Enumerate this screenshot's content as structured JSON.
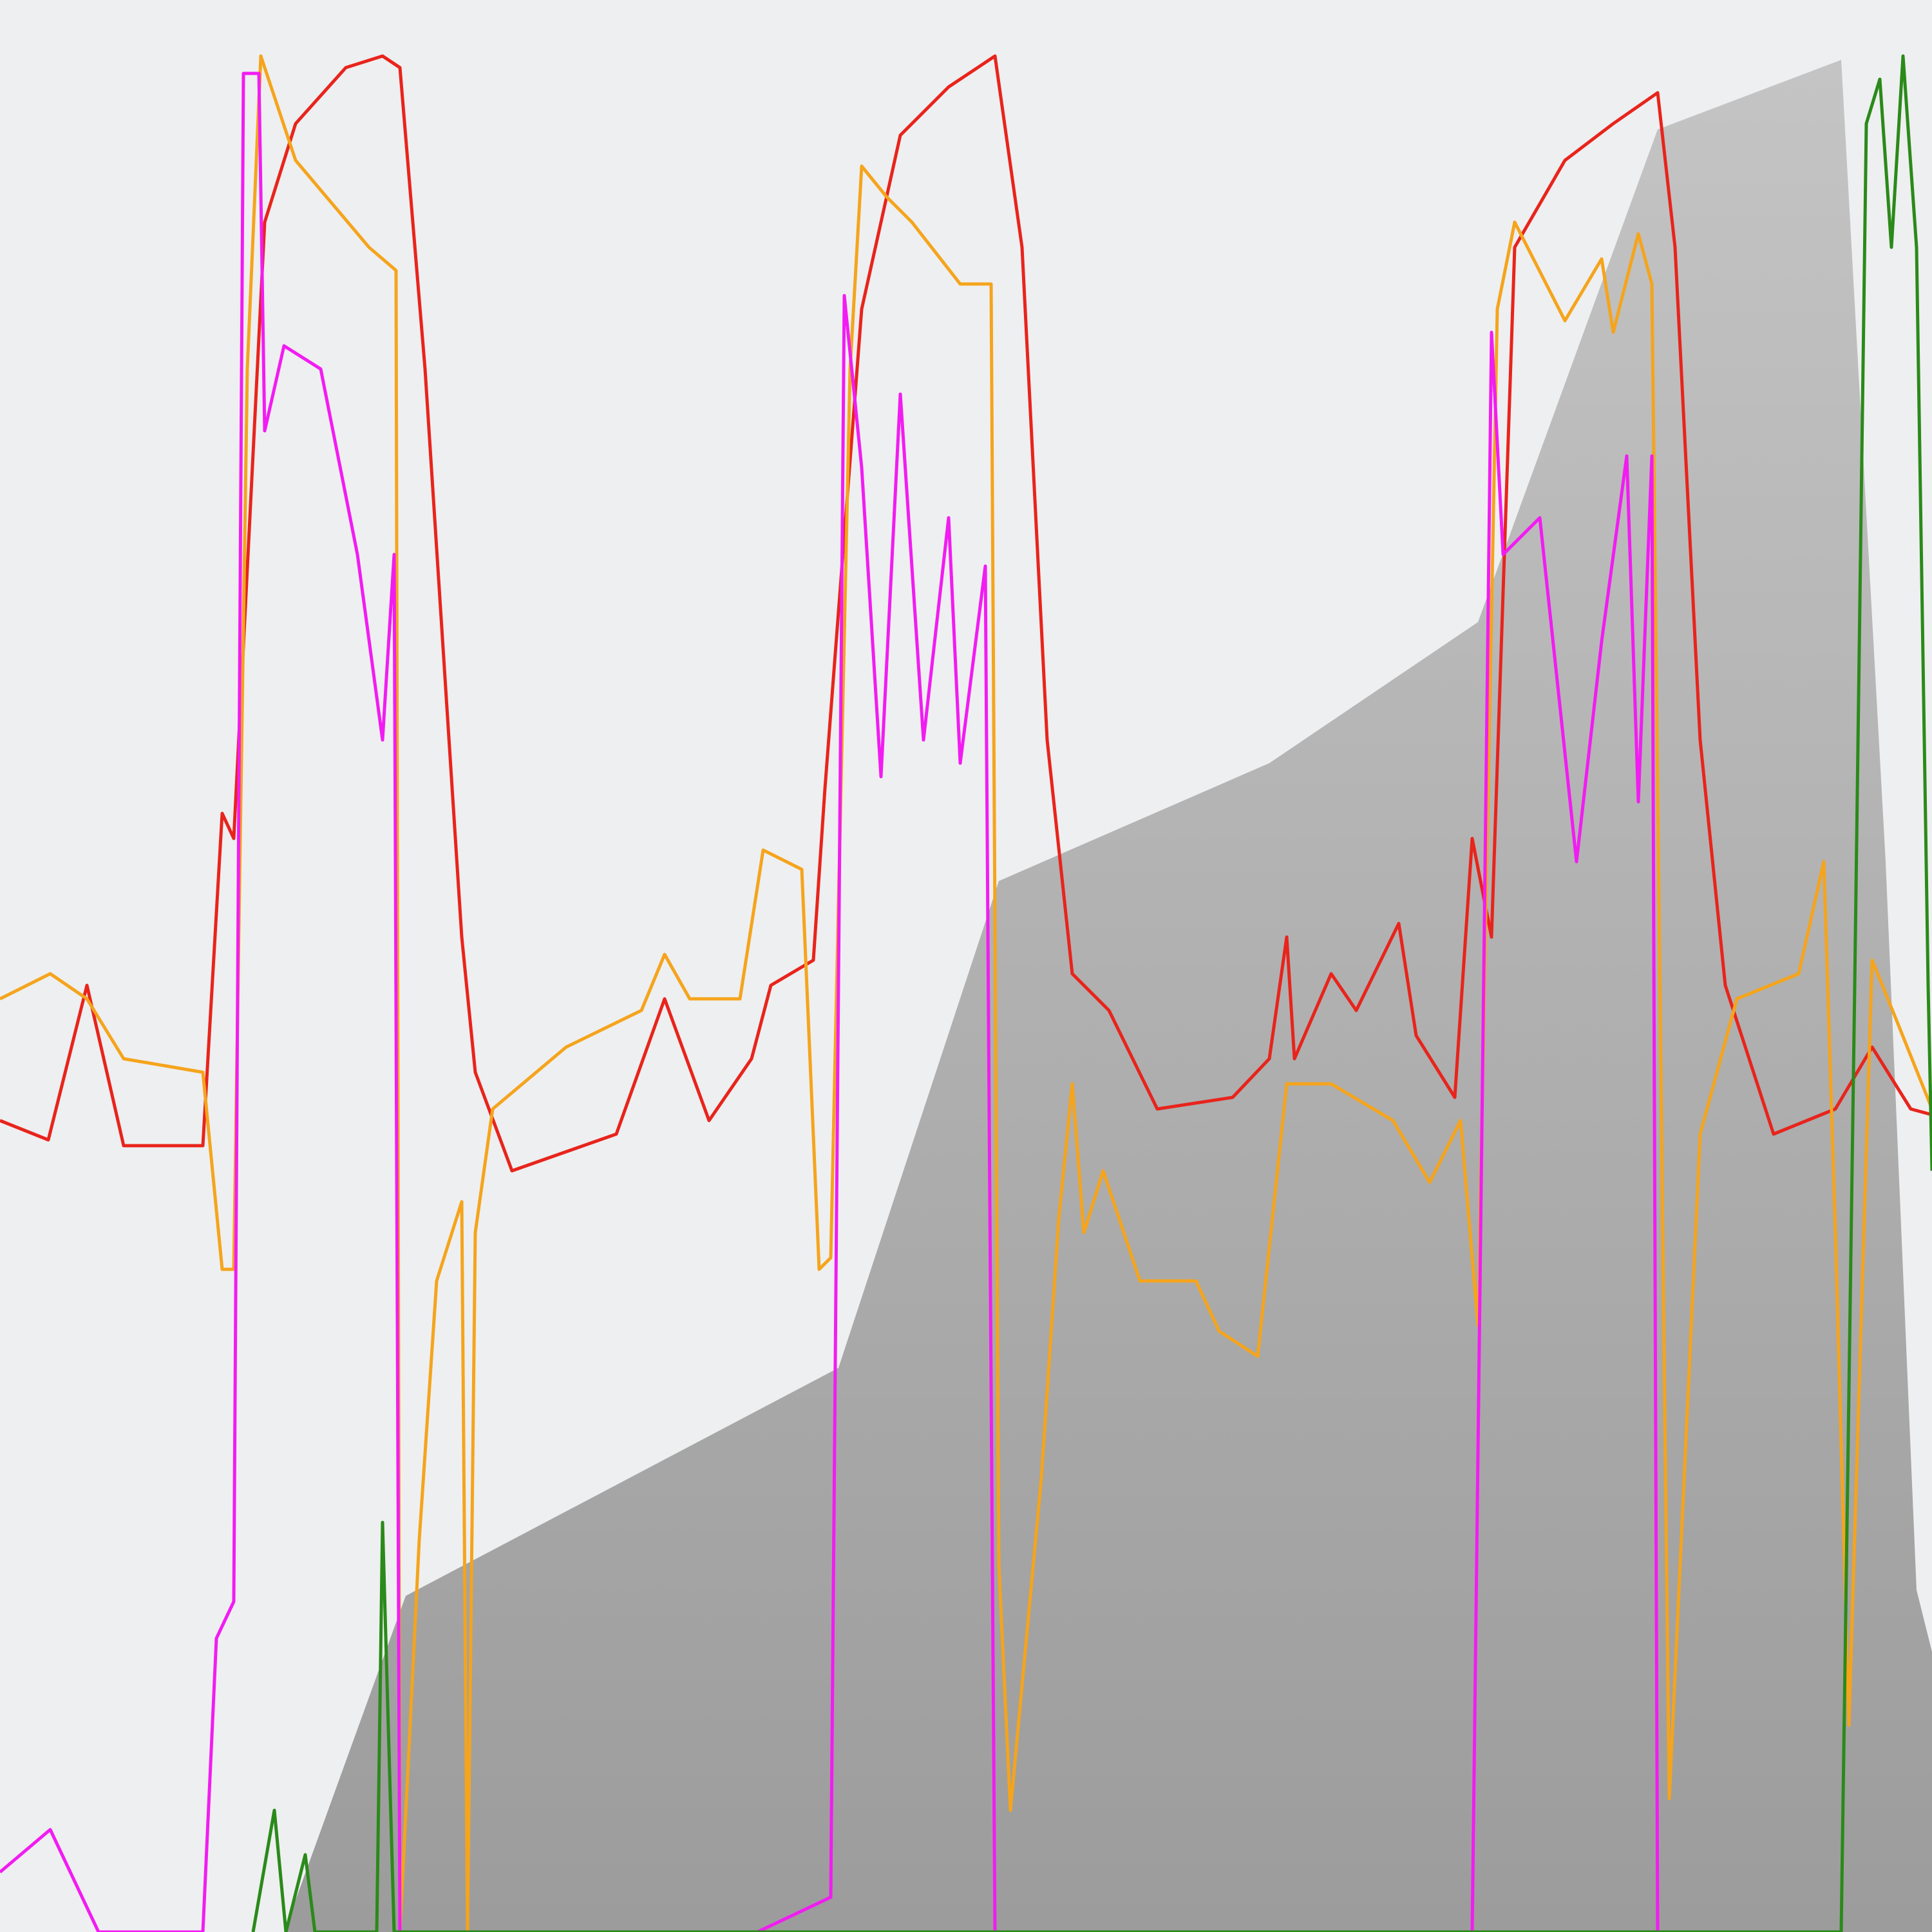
{
  "chart_data": {
    "type": "line",
    "title": "",
    "xlabel": "",
    "ylabel": "",
    "xlim": [
      0,
      100
    ],
    "ylim": [
      0,
      100
    ],
    "grid": false,
    "legend": "none",
    "background": "#eeeff0",
    "area": {
      "color_top": "#c4c4c4",
      "color_bottom": "#9c9c9c",
      "points": [
        [
          14.7,
          0
        ],
        [
          21,
          17.4
        ],
        [
          43.4,
          29.2
        ],
        [
          51.7,
          54.4
        ],
        [
          65.7,
          60.5
        ],
        [
          76.5,
          67.8
        ],
        [
          85.8,
          93.3
        ],
        [
          95.3,
          96.9
        ],
        [
          97.6,
          55.4
        ],
        [
          99.2,
          17.7
        ],
        [
          100,
          14.5
        ],
        [
          100,
          0
        ]
      ]
    },
    "series": [
      {
        "color": "#e8241c",
        "points": [
          [
            0,
            42
          ],
          [
            2.5,
            41
          ],
          [
            4.5,
            49
          ],
          [
            6.4,
            40.7
          ],
          [
            10.5,
            40.7
          ],
          [
            11.5,
            57.9
          ],
          [
            12.1,
            56.6
          ],
          [
            13.7,
            88.5
          ],
          [
            15.3,
            93.6
          ],
          [
            17.9,
            96.5
          ],
          [
            19.8,
            97.1
          ],
          [
            20.7,
            96.5
          ],
          [
            22,
            80.9
          ],
          [
            23.9,
            51.5
          ],
          [
            24.6,
            44.5
          ],
          [
            26.5,
            39.4
          ],
          [
            31.9,
            41.3
          ],
          [
            34.4,
            48.3
          ],
          [
            36.7,
            42
          ],
          [
            38.9,
            45.2
          ],
          [
            39.9,
            49
          ],
          [
            42.1,
            50.3
          ],
          [
            42.7,
            59.2
          ],
          [
            44.6,
            84
          ],
          [
            46.6,
            93
          ],
          [
            49.1,
            95.5
          ],
          [
            51.5,
            97.1
          ],
          [
            52.9,
            87.2
          ],
          [
            54.2,
            61.7
          ],
          [
            55.5,
            49.6
          ],
          [
            57.4,
            47.7
          ],
          [
            59.9,
            42.6
          ],
          [
            63.8,
            43.2
          ],
          [
            65.7,
            45.2
          ],
          [
            66.6,
            51.5
          ],
          [
            67,
            45.2
          ],
          [
            68.9,
            49.6
          ],
          [
            70.2,
            47.7
          ],
          [
            72.4,
            52.2
          ],
          [
            73.3,
            46.4
          ],
          [
            75.3,
            43.2
          ],
          [
            76.2,
            56.6
          ],
          [
            77.2,
            51.5
          ],
          [
            78.4,
            87.2
          ],
          [
            81,
            91.7
          ],
          [
            83.5,
            93.6
          ],
          [
            85.8,
            95.2
          ],
          [
            86.7,
            87.2
          ],
          [
            88,
            61.7
          ],
          [
            89.3,
            49
          ],
          [
            91.8,
            41.3
          ],
          [
            95,
            42.6
          ],
          [
            96.9,
            45.8
          ],
          [
            98.9,
            42.6
          ],
          [
            100,
            42.3
          ]
        ]
      },
      {
        "color": "#f5a41c",
        "points": [
          [
            0,
            48.3
          ],
          [
            2.6,
            49.6
          ],
          [
            4.5,
            48.3
          ],
          [
            6.4,
            45.2
          ],
          [
            10.5,
            44.5
          ],
          [
            11.5,
            34.3
          ],
          [
            12.1,
            34.3
          ],
          [
            12.8,
            80.9
          ],
          [
            13.5,
            97.1
          ],
          [
            15.3,
            91.7
          ],
          [
            19.1,
            87.2
          ],
          [
            20.5,
            86
          ],
          [
            20.7,
            0
          ],
          [
            21.7,
            20.3
          ],
          [
            22.6,
            33.7
          ],
          [
            23.9,
            37.8
          ],
          [
            24.2,
            0
          ],
          [
            24.6,
            36.2
          ],
          [
            25.5,
            42.6
          ],
          [
            29.3,
            45.8
          ],
          [
            33.2,
            47.7
          ],
          [
            34.4,
            50.6
          ],
          [
            35.7,
            48.3
          ],
          [
            38.3,
            48.3
          ],
          [
            39.5,
            56
          ],
          [
            41.5,
            55
          ],
          [
            42.4,
            34.3
          ],
          [
            43,
            34.9
          ],
          [
            44,
            80.9
          ],
          [
            44.6,
            91.4
          ],
          [
            45.9,
            89.8
          ],
          [
            47.2,
            88.5
          ],
          [
            49.7,
            85.3
          ],
          [
            51.3,
            85.3
          ],
          [
            51.7,
            19
          ],
          [
            52.3,
            6.3
          ],
          [
            53.9,
            23.5
          ],
          [
            54.8,
            36.9
          ],
          [
            55.5,
            43.9
          ],
          [
            56.1,
            36.2
          ],
          [
            57.1,
            39.4
          ],
          [
            59,
            33.7
          ],
          [
            61.9,
            33.7
          ],
          [
            63.1,
            31.1
          ],
          [
            65.1,
            29.8
          ],
          [
            66.6,
            43.9
          ],
          [
            68.9,
            43.9
          ],
          [
            72.1,
            42
          ],
          [
            74,
            38.8
          ],
          [
            75.6,
            42
          ],
          [
            76.5,
            31.4
          ],
          [
            77.5,
            84
          ],
          [
            78.4,
            88.5
          ],
          [
            81,
            83.4
          ],
          [
            82.9,
            86.6
          ],
          [
            83.5,
            82.8
          ],
          [
            84.8,
            87.9
          ],
          [
            85.5,
            85.3
          ],
          [
            86.4,
            6.9
          ],
          [
            88,
            41.3
          ],
          [
            89.9,
            48.3
          ],
          [
            93.1,
            49.6
          ],
          [
            94.4,
            55.4
          ],
          [
            95,
            36.2
          ],
          [
            95.7,
            10.7
          ],
          [
            96.9,
            50.3
          ],
          [
            98.2,
            47.1
          ],
          [
            100,
            42.6
          ]
        ]
      },
      {
        "color": "#f21cf2",
        "points": [
          [
            0,
            3.1
          ],
          [
            2.6,
            5.3
          ],
          [
            5.1,
            0
          ],
          [
            10.5,
            0
          ],
          [
            11.2,
            15.2
          ],
          [
            12.1,
            17.1
          ],
          [
            12.6,
            96.2
          ],
          [
            13.4,
            96.2
          ],
          [
            13.7,
            77.7
          ],
          [
            14.7,
            82.1
          ],
          [
            16.6,
            80.9
          ],
          [
            18.5,
            71.3
          ],
          [
            19.8,
            61.7
          ],
          [
            20.4,
            71.3
          ],
          [
            20.7,
            0
          ],
          [
            39.2,
            0
          ],
          [
            43,
            1.8
          ],
          [
            43.7,
            84.7
          ],
          [
            44.6,
            75.8
          ],
          [
            45.6,
            59.8
          ],
          [
            46.6,
            79.6
          ],
          [
            47.8,
            61.7
          ],
          [
            49.1,
            73.2
          ],
          [
            49.7,
            60.5
          ],
          [
            51,
            70.7
          ],
          [
            51.5,
            0
          ],
          [
            76.2,
            0
          ],
          [
            77.2,
            82.8
          ],
          [
            77.8,
            71.3
          ],
          [
            79.7,
            73.2
          ],
          [
            81.6,
            55.4
          ],
          [
            82.9,
            66.8
          ],
          [
            84.2,
            76.4
          ],
          [
            84.8,
            58.5
          ],
          [
            85.5,
            76.4
          ],
          [
            85.8,
            0
          ]
        ]
      },
      {
        "color": "#2a8a1a",
        "points": [
          [
            13.1,
            0
          ],
          [
            14.2,
            6.3
          ],
          [
            14.8,
            0
          ],
          [
            15.8,
            4
          ],
          [
            16.3,
            0
          ],
          [
            19.5,
            0
          ],
          [
            19.8,
            21.2
          ],
          [
            20.4,
            0
          ],
          [
            95.3,
            0
          ],
          [
            96,
            49
          ],
          [
            96.6,
            93.6
          ],
          [
            97.3,
            95.9
          ],
          [
            97.9,
            87.2
          ],
          [
            98.5,
            97.1
          ],
          [
            99.2,
            87.2
          ],
          [
            99.8,
            49
          ],
          [
            100,
            39.4
          ]
        ]
      }
    ]
  }
}
